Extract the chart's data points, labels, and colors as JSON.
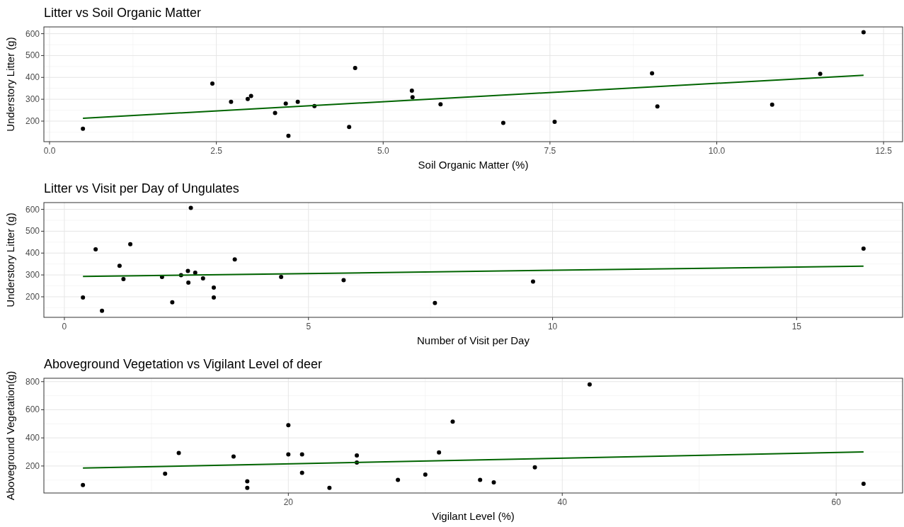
{
  "chart_data": [
    {
      "type": "scatter",
      "title": "Litter vs Soil Organic Matter",
      "xlabel": "Soil Organic Matter (%)",
      "ylabel": "Understory Litter (g)",
      "xlim": [
        -0.085,
        12.785
      ],
      "ylim": [
        106,
        631
      ],
      "xticks": [
        {
          "value": 0,
          "label": "0.0"
        },
        {
          "value": 2.5,
          "label": "2.5"
        },
        {
          "value": 5,
          "label": "5.0"
        },
        {
          "value": 7.5,
          "label": "7.5"
        },
        {
          "value": 10,
          "label": "10.0"
        },
        {
          "value": 12.5,
          "label": "12.5"
        }
      ],
      "yticks": [
        200,
        300,
        400,
        500,
        600
      ],
      "grid": true,
      "legend": false,
      "series": [
        {
          "marker": "circle",
          "color": "#000000",
          "x": [
            0.5,
            2.44,
            2.72,
            2.97,
            3.02,
            3.38,
            3.54,
            3.58,
            3.72,
            3.97,
            4.49,
            4.58,
            5.43,
            5.44,
            5.86,
            6.8,
            7.57,
            9.03,
            9.11,
            10.83,
            11.55,
            12.2
          ],
          "values": [
            165,
            372,
            288,
            301,
            315,
            237,
            280,
            133,
            288,
            269,
            173,
            443,
            339,
            309,
            277,
            192,
            197,
            419,
            267,
            275,
            416,
            607
          ]
        },
        {
          "type": "line",
          "color": "#006400",
          "x": [
            0.5,
            12.2
          ],
          "values": [
            213,
            410
          ]
        }
      ]
    },
    {
      "type": "scatter",
      "title": "Litter vs Visit per Day of Ungulates",
      "xlabel": "Number of Visit per Day",
      "ylabel": "Understory Litter (g)",
      "xlim": [
        -0.42,
        17.17
      ],
      "ylim": [
        106,
        631
      ],
      "xticks": [
        0,
        5,
        10,
        15
      ],
      "yticks": [
        200,
        300,
        400,
        500,
        600
      ],
      "grid": true,
      "legend": false,
      "series": [
        {
          "marker": "circle",
          "color": "#000000",
          "x": [
            0.38,
            0.77,
            0.64,
            1.13,
            1.21,
            1.35,
            2.0,
            2.21,
            2.39,
            2.59,
            2.53,
            2.54,
            2.68,
            2.84,
            3.06,
            3.06,
            3.49,
            4.44,
            5.72,
            7.59,
            9.6,
            16.37
          ],
          "values": [
            197,
            136,
            417,
            342,
            281,
            441,
            291,
            175,
            299,
            607,
            318,
            265,
            310,
            284,
            242,
            197,
            371,
            291,
            276,
            172,
            270,
            420
          ]
        },
        {
          "type": "line",
          "color": "#006400",
          "x": [
            0.38,
            16.37
          ],
          "values": [
            293,
            340
          ]
        }
      ]
    },
    {
      "type": "scatter",
      "title": "Aboveground Vegetation vs Vigilant Level of deer",
      "xlabel": "Vigilant Level (%)",
      "ylabel": "Aboveground Vegetation(g)",
      "xlim": [
        2.15,
        64.85
      ],
      "ylim": [
        8,
        824
      ],
      "xticks": [
        20,
        40,
        60
      ],
      "yticks": [
        200,
        400,
        600,
        800
      ],
      "grid": true,
      "legend": false,
      "series": [
        {
          "marker": "circle",
          "color": "#000000",
          "x": [
            5,
            11,
            12,
            16,
            17,
            17,
            20,
            20,
            21,
            21,
            23,
            25,
            25,
            28,
            30,
            31,
            32,
            34,
            35,
            38,
            42,
            62
          ],
          "values": [
            65,
            145,
            293,
            268,
            91,
            45,
            490,
            283,
            283,
            152,
            45,
            275,
            224,
            101,
            139,
            296,
            516,
            101,
            84,
            190,
            780,
            73
          ]
        },
        {
          "type": "line",
          "color": "#006400",
          "x": [
            5,
            62
          ],
          "values": [
            185,
            300
          ]
        }
      ]
    }
  ]
}
